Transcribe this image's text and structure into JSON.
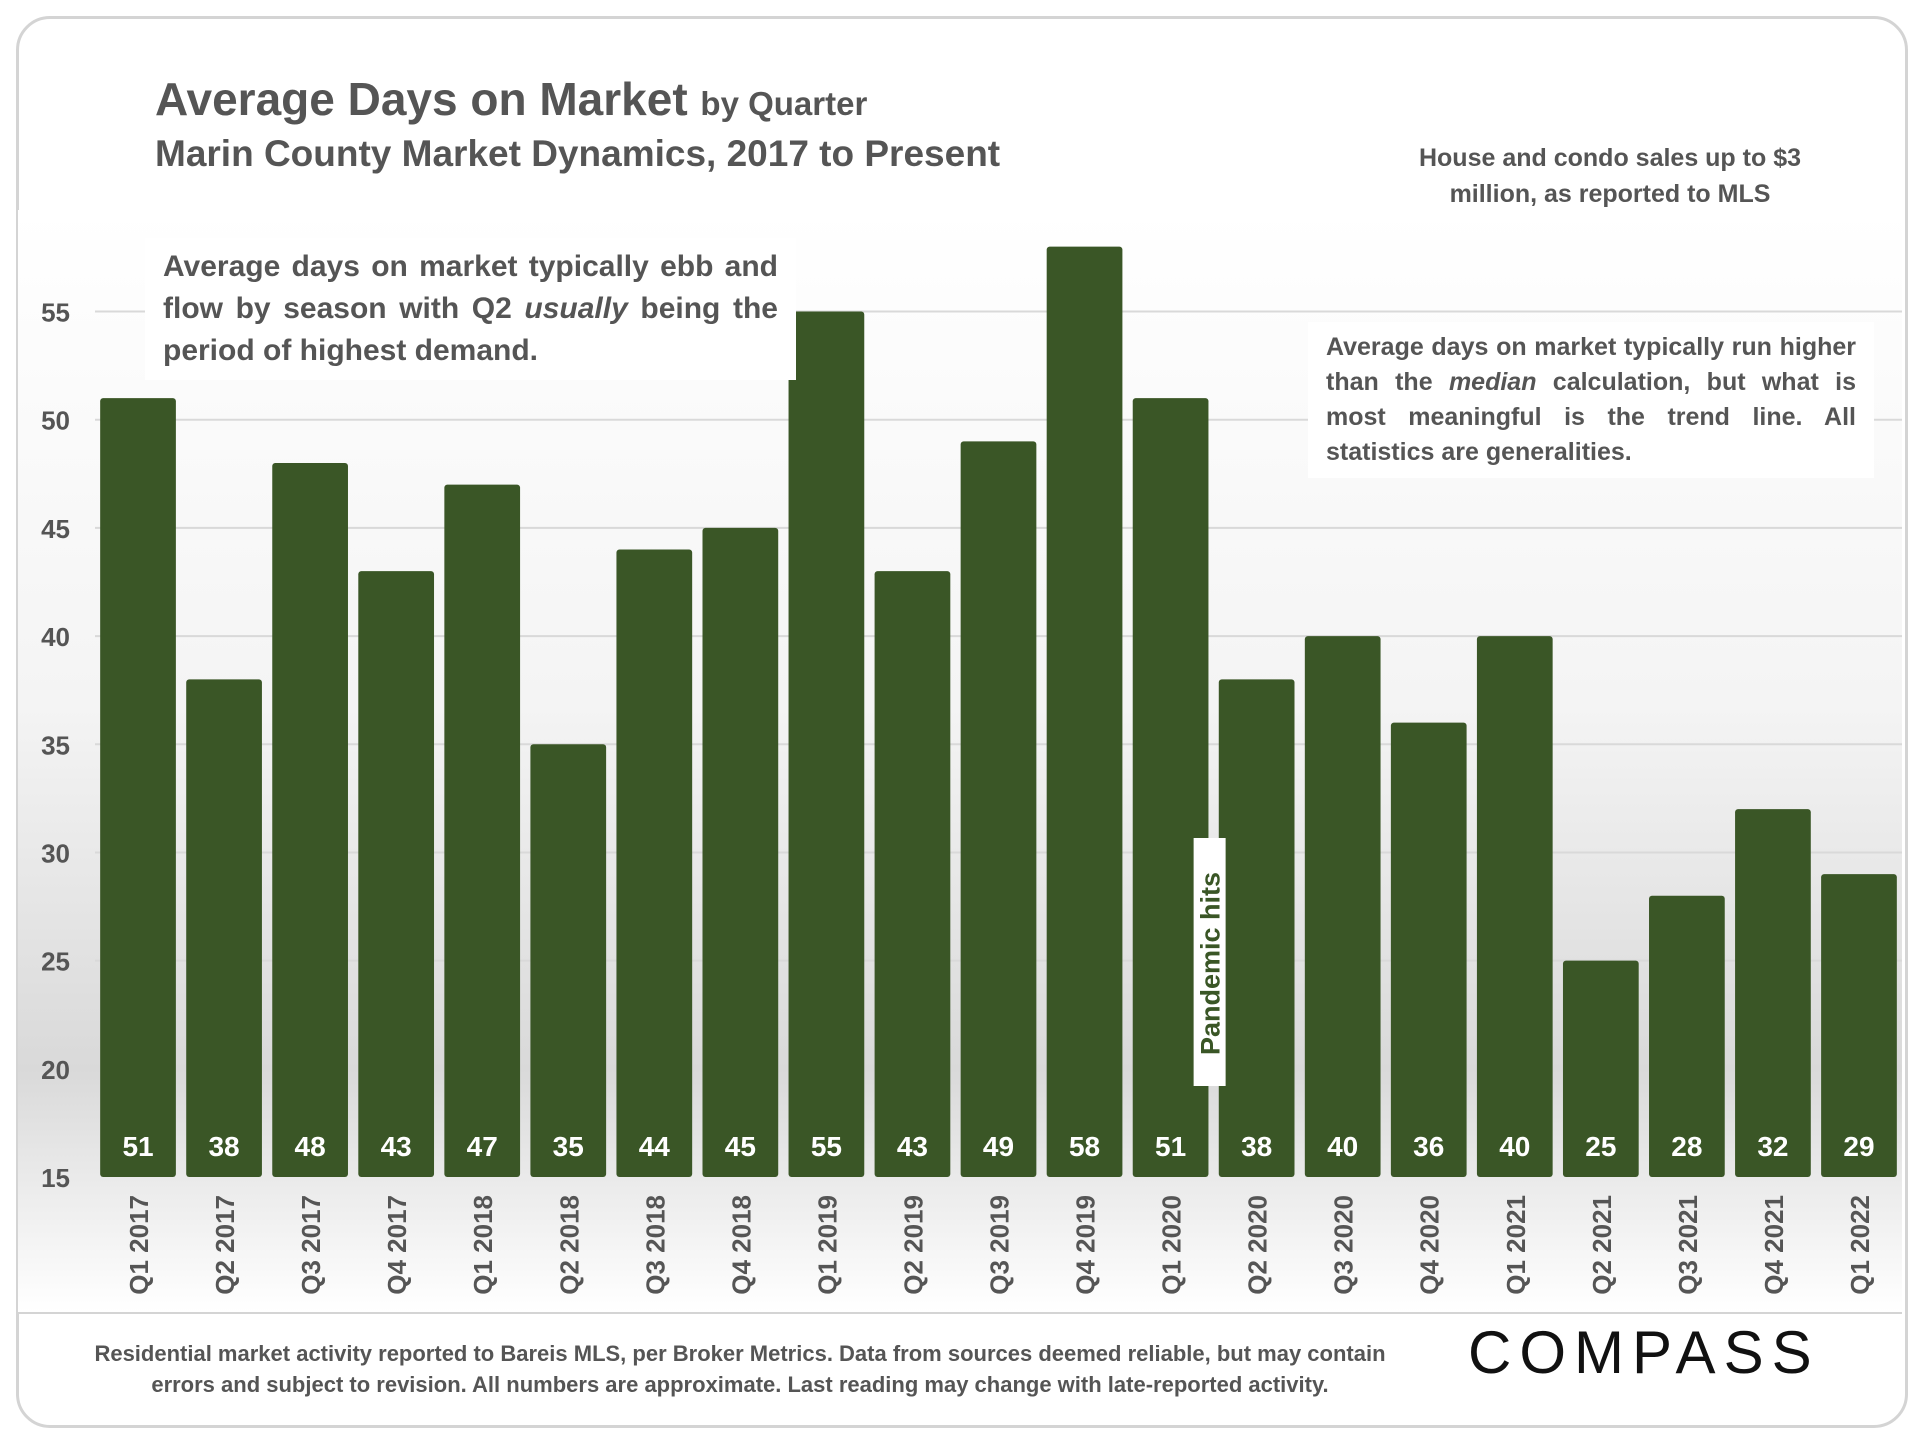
{
  "title": {
    "main": "Average Days on Market",
    "suffix": "by Quarter",
    "subtitle": "Marin County Market Dynamics, 2017 to Present"
  },
  "note_top_right": "House and condo sales up to $3 million, as reported to MLS",
  "annotations": {
    "left_box": {
      "part1": "Average days on market typically ebb and flow by season with Q2 ",
      "italic": "usually",
      "part2": " being the period of highest demand."
    },
    "right_box": {
      "part1": "Average days on market typically run higher than the ",
      "italic": "median",
      "part2": " calculation, but what is most meaningful is the trend line. All statistics are generalities."
    },
    "pandemic": "Pandemic hits"
  },
  "footer": "Residential market activity reported to Bareis MLS, per Broker Metrics. Data from sources deemed reliable, but may contain errors and subject to revision. All numbers are approximate. Last reading may change with late-reported activity.",
  "logo": "COMPASS",
  "colors": {
    "bar": "#3a5626",
    "text": "#555555",
    "label": "#ffffff"
  },
  "chart_data": {
    "type": "bar",
    "title": "Average Days on Market by Quarter",
    "xlabel": "",
    "ylabel": "",
    "categories": [
      "Q1 2017",
      "Q2 2017",
      "Q3 2017",
      "Q4 2017",
      "Q1 2018",
      "Q2 2018",
      "Q3 2018",
      "Q4 2018",
      "Q1 2019",
      "Q2 2019",
      "Q3 2019",
      "Q4 2019",
      "Q1 2020",
      "Q2 2020",
      "Q3 2020",
      "Q4 2020",
      "Q1 2021",
      "Q2 2021",
      "Q3 2021",
      "Q4 2021",
      "Q1 2022"
    ],
    "values": [
      51,
      38,
      48,
      43,
      47,
      35,
      44,
      45,
      55,
      43,
      49,
      58,
      51,
      38,
      40,
      36,
      40,
      25,
      28,
      32,
      29
    ],
    "ylim": [
      15,
      59
    ],
    "yticks": [
      15,
      20,
      25,
      30,
      35,
      40,
      45,
      50,
      55
    ],
    "grid": true
  }
}
